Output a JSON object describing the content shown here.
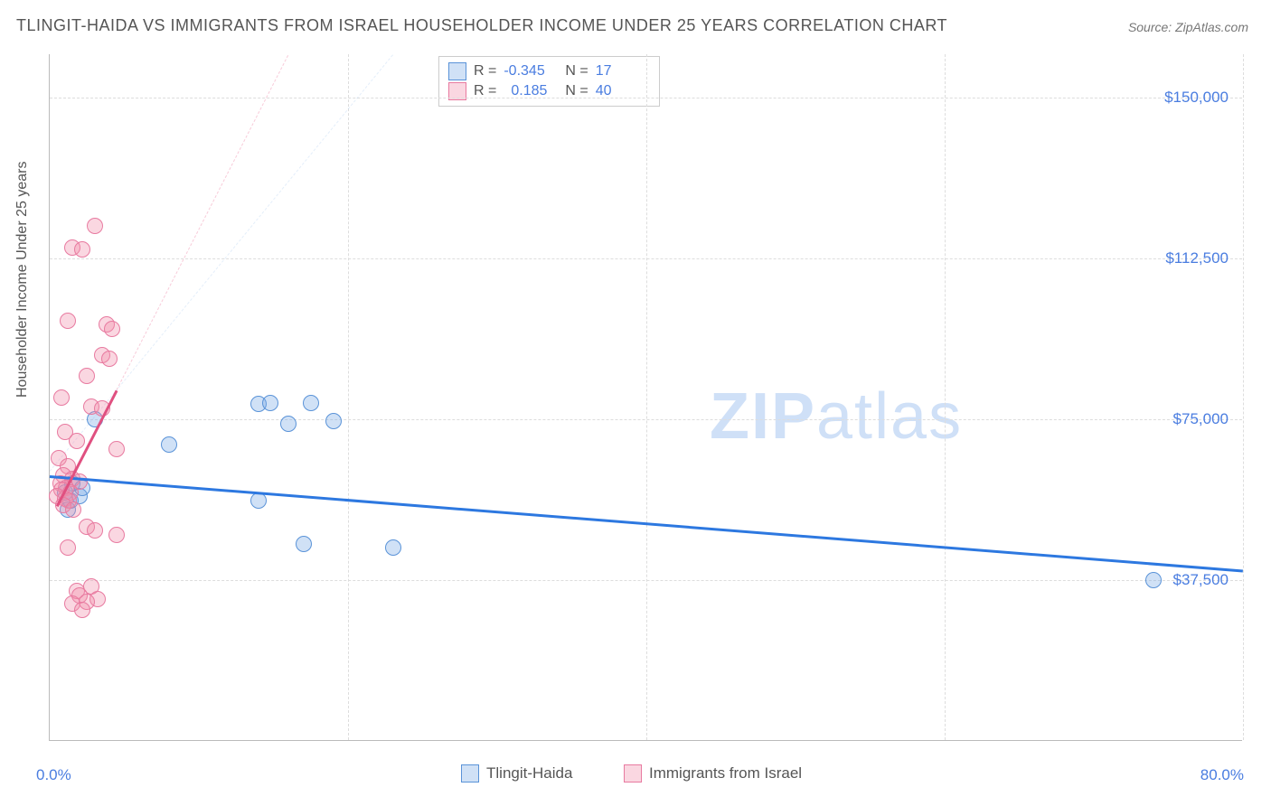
{
  "title": "TLINGIT-HAIDA VS IMMIGRANTS FROM ISRAEL HOUSEHOLDER INCOME UNDER 25 YEARS CORRELATION CHART",
  "source": "Source: ZipAtlas.com",
  "y_axis_label": "Householder Income Under 25 years",
  "watermark_a": "ZIP",
  "watermark_b": "atlas",
  "chart": {
    "type": "scatter",
    "background_color": "#ffffff",
    "grid_color": "#dddddd",
    "axis_color": "#bbbbbb",
    "tick_label_color": "#4a7de0",
    "text_color": "#555555",
    "xlim": [
      0,
      80
    ],
    "ylim": [
      0,
      160000
    ],
    "y_ticks": [
      37500,
      75000,
      112500,
      150000
    ],
    "y_tick_labels": [
      "$37,500",
      "$75,000",
      "$112,500",
      "$150,000"
    ],
    "x_tick_labels": {
      "min": "0.0%",
      "max": "80.0%"
    },
    "x_grid_positions": [
      20,
      40,
      60,
      80
    ],
    "series": [
      {
        "name": "Tlingit-Haida",
        "marker_color_fill": "rgba(120,170,230,0.35)",
        "marker_color_stroke": "#5a93d8",
        "trend_color": "#2d78e0",
        "trend_width": 2.5,
        "trend": {
          "x1": 0,
          "y1": 62000,
          "x2": 80,
          "y2": 40000
        },
        "dashed_extension": {
          "x1": 0,
          "y1": 63000,
          "x2": 23,
          "y2": 160000,
          "color": "rgba(120,170,230,0.2)"
        },
        "stats": {
          "R": "-0.345",
          "N": "17"
        },
        "points": [
          {
            "x": 1.2,
            "y": 54000
          },
          {
            "x": 1.4,
            "y": 56000
          },
          {
            "x": 1.0,
            "y": 58000
          },
          {
            "x": 1.5,
            "y": 60000
          },
          {
            "x": 2.0,
            "y": 57000
          },
          {
            "x": 2.2,
            "y": 59000
          },
          {
            "x": 3.0,
            "y": 75000
          },
          {
            "x": 8.0,
            "y": 69000
          },
          {
            "x": 14.0,
            "y": 78500
          },
          {
            "x": 14.8,
            "y": 78700
          },
          {
            "x": 14.0,
            "y": 56000
          },
          {
            "x": 16.0,
            "y": 74000
          },
          {
            "x": 17.5,
            "y": 78800
          },
          {
            "x": 19.0,
            "y": 74500
          },
          {
            "x": 17.0,
            "y": 46000
          },
          {
            "x": 23.0,
            "y": 45000
          },
          {
            "x": 74.0,
            "y": 37500
          }
        ]
      },
      {
        "name": "Immigrants from Israel",
        "marker_color_fill": "rgba(240,140,170,0.35)",
        "marker_color_stroke": "#e87aa0",
        "trend_color": "#e05080",
        "trend_width": 2.5,
        "trend": {
          "x1": 0.5,
          "y1": 55000,
          "x2": 4.5,
          "y2": 82000
        },
        "dashed_extension": {
          "x1": 4.5,
          "y1": 82000,
          "x2": 16,
          "y2": 160000,
          "color": "rgba(240,140,170,0.45)"
        },
        "stats": {
          "R": "0.185",
          "N": "40"
        },
        "points": [
          {
            "x": 3.0,
            "y": 120000
          },
          {
            "x": 1.5,
            "y": 115000
          },
          {
            "x": 2.2,
            "y": 114500
          },
          {
            "x": 1.2,
            "y": 98000
          },
          {
            "x": 3.8,
            "y": 97000
          },
          {
            "x": 4.2,
            "y": 96000
          },
          {
            "x": 3.5,
            "y": 90000
          },
          {
            "x": 4.0,
            "y": 89000
          },
          {
            "x": 2.5,
            "y": 85000
          },
          {
            "x": 0.8,
            "y": 80000
          },
          {
            "x": 2.8,
            "y": 78000
          },
          {
            "x": 3.5,
            "y": 77500
          },
          {
            "x": 1.0,
            "y": 72000
          },
          {
            "x": 1.8,
            "y": 70000
          },
          {
            "x": 4.5,
            "y": 68000
          },
          {
            "x": 0.6,
            "y": 66000
          },
          {
            "x": 1.2,
            "y": 64000
          },
          {
            "x": 0.9,
            "y": 62000
          },
          {
            "x": 1.5,
            "y": 61000
          },
          {
            "x": 2.0,
            "y": 60500
          },
          {
            "x": 0.7,
            "y": 60000
          },
          {
            "x": 1.1,
            "y": 59000
          },
          {
            "x": 0.8,
            "y": 58500
          },
          {
            "x": 1.4,
            "y": 58000
          },
          {
            "x": 0.5,
            "y": 57000
          },
          {
            "x": 1.0,
            "y": 56500
          },
          {
            "x": 1.3,
            "y": 56000
          },
          {
            "x": 0.9,
            "y": 55000
          },
          {
            "x": 1.6,
            "y": 54000
          },
          {
            "x": 2.5,
            "y": 50000
          },
          {
            "x": 3.0,
            "y": 49000
          },
          {
            "x": 4.5,
            "y": 48000
          },
          {
            "x": 1.2,
            "y": 45000
          },
          {
            "x": 2.8,
            "y": 36000
          },
          {
            "x": 1.8,
            "y": 35000
          },
          {
            "x": 2.0,
            "y": 34000
          },
          {
            "x": 3.2,
            "y": 33000
          },
          {
            "x": 2.5,
            "y": 32500
          },
          {
            "x": 1.5,
            "y": 32000
          },
          {
            "x": 2.2,
            "y": 30500
          }
        ]
      }
    ]
  },
  "stats_labels": {
    "R": "R =",
    "N": "N ="
  },
  "legend_bottom": [
    {
      "label": "Tlingit-Haida"
    },
    {
      "label": "Immigrants from Israel"
    }
  ]
}
